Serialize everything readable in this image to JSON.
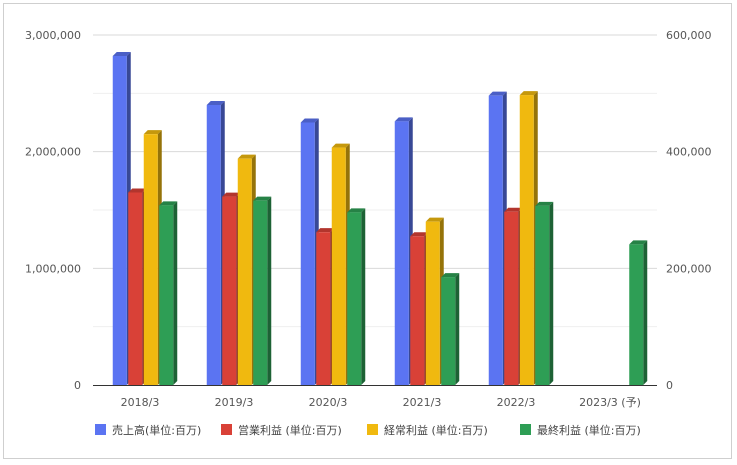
{
  "chart_data": {
    "type": "bar",
    "title": "",
    "categories": [
      "2018/3",
      "2019/3",
      "2020/3",
      "2021/3",
      "2022/3",
      "2023/3 (予)"
    ],
    "left_axis": {
      "ylim": [
        0,
        3000000
      ],
      "ticks": [
        0,
        1000000,
        2000000,
        3000000
      ],
      "tick_labels": [
        "0",
        "1,000,000",
        "2,000,000",
        "3,000,000"
      ]
    },
    "right_axis": {
      "ylim": [
        0,
        600000
      ],
      "ticks": [
        0,
        200000,
        400000,
        600000
      ],
      "tick_labels": [
        "0",
        "200,000",
        "400,000",
        "600,000"
      ]
    },
    "grid": true,
    "legend_position": "bottom",
    "series": [
      {
        "name": "売上高(単位:百万)",
        "axis": "left",
        "color": "#5b74f2",
        "values": [
          2820000,
          2400000,
          2250000,
          2260000,
          2480000,
          null
        ]
      },
      {
        "name": "営業利益 (単位:百万)",
        "axis": "right",
        "color": "#d94137",
        "values": [
          330000,
          323000,
          262000,
          255000,
          297000,
          null
        ]
      },
      {
        "name": "経常利益 (単位:百万)",
        "axis": "right",
        "color": "#f0b90f",
        "values": [
          430000,
          388000,
          407000,
          280000,
          497000,
          null
        ]
      },
      {
        "name": "最終利益 (単位:百万)",
        "axis": "right",
        "color": "#2e9e55",
        "values": [
          308000,
          316000,
          296000,
          185000,
          307000,
          241000
        ]
      }
    ]
  }
}
